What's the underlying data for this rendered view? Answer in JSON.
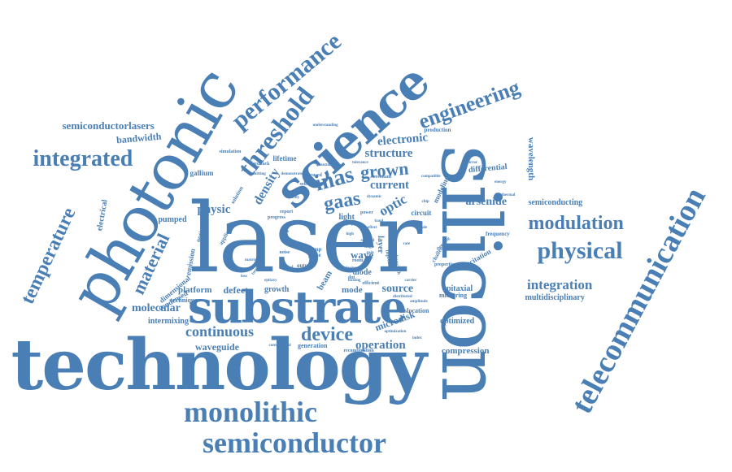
{
  "color": "#4a7fb5",
  "words": [
    {
      "text": "technology"
    },
    {
      "text": "laser"
    },
    {
      "text": "silicon"
    },
    {
      "text": "photonic"
    },
    {
      "text": "substrate"
    },
    {
      "text": "science"
    },
    {
      "text": "telecommunication"
    },
    {
      "text": "semiconductor"
    },
    {
      "text": "monolithic"
    },
    {
      "text": "performance"
    },
    {
      "text": "threshold"
    },
    {
      "text": "physical"
    },
    {
      "text": "modulation"
    },
    {
      "text": "engineering"
    },
    {
      "text": "integrated"
    },
    {
      "text": "temperature"
    },
    {
      "text": "material"
    },
    {
      "text": "inas"
    },
    {
      "text": "gaas"
    },
    {
      "text": "grown"
    },
    {
      "text": "device"
    },
    {
      "text": "continuous"
    },
    {
      "text": "structure"
    },
    {
      "text": "electronic"
    },
    {
      "text": "optic"
    },
    {
      "text": "current"
    },
    {
      "text": "density"
    },
    {
      "text": "physic"
    },
    {
      "text": "molecular"
    },
    {
      "text": "integration"
    },
    {
      "text": "operation"
    },
    {
      "text": "source"
    },
    {
      "text": "arsenide"
    },
    {
      "text": "waveguide"
    },
    {
      "text": "semiconductorlasers"
    },
    {
      "text": "bandwidth"
    },
    {
      "text": "microdisk"
    },
    {
      "text": "wave"
    },
    {
      "text": "differential"
    },
    {
      "text": "wavelength"
    },
    {
      "text": "compression"
    },
    {
      "text": "multidisciplinary"
    },
    {
      "text": "semiconducting"
    },
    {
      "text": "optimized"
    },
    {
      "text": "epitaxial"
    },
    {
      "text": "excitation"
    },
    {
      "text": "platform"
    },
    {
      "text": "defect"
    },
    {
      "text": "growth"
    },
    {
      "text": "mode"
    },
    {
      "text": "beam"
    },
    {
      "text": "diode"
    },
    {
      "text": "layer"
    },
    {
      "text": "intermixing"
    },
    {
      "text": "electrical"
    },
    {
      "text": "pumped"
    },
    {
      "text": "emission"
    },
    {
      "text": "dimensional"
    },
    {
      "text": "condensed"
    },
    {
      "text": "technique"
    },
    {
      "text": "gallium"
    },
    {
      "text": "lifetime"
    },
    {
      "text": "light"
    },
    {
      "text": "circuit"
    },
    {
      "text": "modeling"
    },
    {
      "text": "dislocation"
    },
    {
      "text": "microring"
    },
    {
      "text": "frequency"
    },
    {
      "text": "production"
    },
    {
      "text": "generation"
    },
    {
      "text": "simulation"
    },
    {
      "text": "optical"
    },
    {
      "text": "applied"
    },
    {
      "text": "solution"
    },
    {
      "text": "feedback"
    },
    {
      "text": "focused"
    },
    {
      "text": "selective"
    },
    {
      "text": "pump"
    },
    {
      "text": "pulse"
    },
    {
      "text": "output"
    },
    {
      "text": "noise"
    },
    {
      "text": "signal"
    },
    {
      "text": "injection"
    },
    {
      "text": "linewidth"
    },
    {
      "text": "resonant"
    },
    {
      "text": "compatible"
    },
    {
      "text": "tolerance"
    },
    {
      "text": "dynamic"
    },
    {
      "text": "power"
    },
    {
      "text": "paper"
    },
    {
      "text": "report"
    },
    {
      "text": "progress"
    },
    {
      "text": "efficient"
    },
    {
      "text": "room"
    },
    {
      "text": "challenge"
    },
    {
      "text": "properties"
    },
    {
      "text": "threading"
    },
    {
      "text": "distributed"
    },
    {
      "text": "amplitude"
    },
    {
      "text": "recombination"
    },
    {
      "text": "conventional"
    },
    {
      "text": "optimization"
    },
    {
      "text": "dot"
    },
    {
      "text": "lasing"
    },
    {
      "text": "large"
    },
    {
      "text": "area"
    },
    {
      "text": "matrix"
    },
    {
      "text": "function"
    },
    {
      "text": "demonstrated"
    },
    {
      "text": "understanding"
    },
    {
      "text": "emitting"
    },
    {
      "text": "high"
    },
    {
      "text": "effect"
    },
    {
      "text": "spectral"
    },
    {
      "text": "single"
    },
    {
      "text": "band"
    },
    {
      "text": "gain"
    },
    {
      "text": "locking"
    },
    {
      "text": "rate"
    },
    {
      "text": "chip"
    },
    {
      "text": "scale"
    },
    {
      "text": "quantum"
    },
    {
      "text": "cavity"
    },
    {
      "text": "mirror"
    },
    {
      "text": "energy"
    },
    {
      "text": "thermal"
    },
    {
      "text": "epitaxy"
    },
    {
      "text": "carrier"
    },
    {
      "text": "index"
    },
    {
      "text": "loss"
    }
  ]
}
